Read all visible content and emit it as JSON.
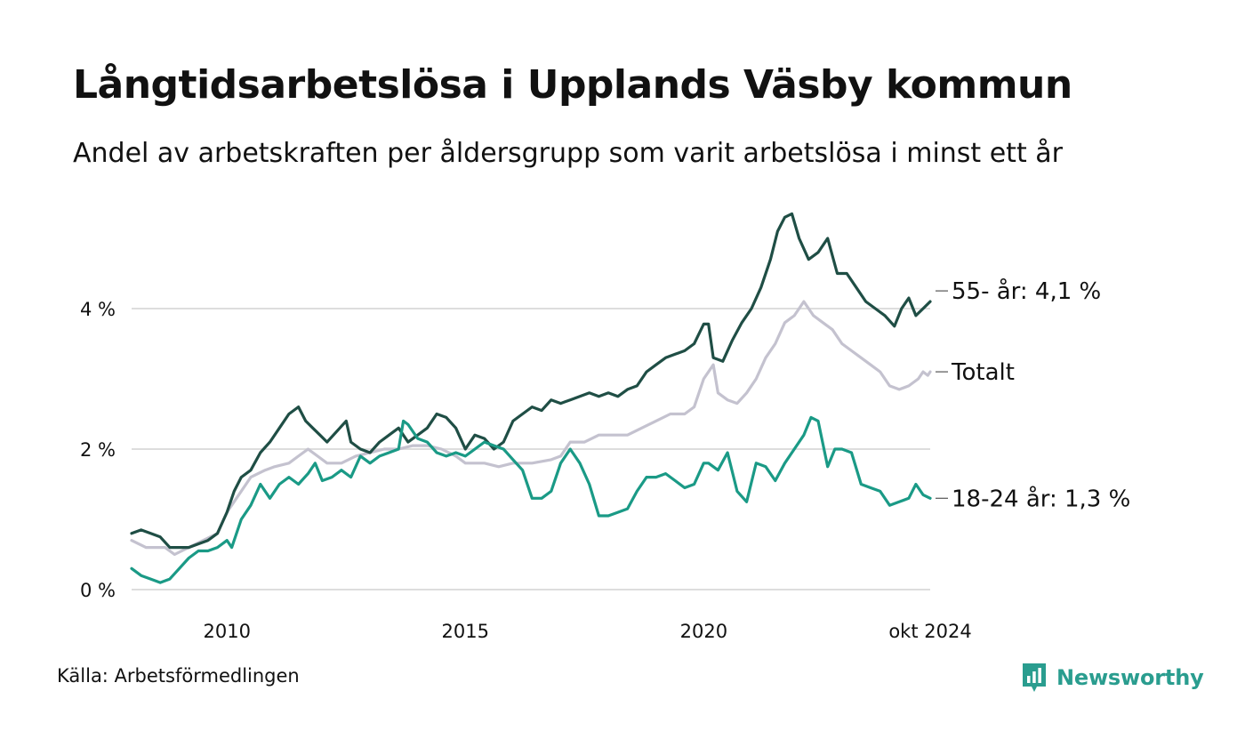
{
  "title": "Långtidsarbetslösa i Upplands Väsby kommun",
  "subtitle": "Andel av arbetskraften per åldersgrupp som varit arbetslösa i minst ett år",
  "source": "Källa: Arbetsförmedlingen",
  "logo_text": "Newsworthy",
  "chart_data": {
    "type": "line",
    "title": "Långtidsarbetslösa i Upplands Väsby kommun",
    "xlabel": "",
    "ylabel": "",
    "x_range": [
      2008.0,
      2024.75
    ],
    "ylim": [
      0,
      5.5
    ],
    "grid": true,
    "y_ticks": [
      {
        "value": 0,
        "label": "0 %"
      },
      {
        "value": 2,
        "label": "2 %"
      },
      {
        "value": 4,
        "label": "4 %"
      }
    ],
    "x_ticks": [
      {
        "value": 2010,
        "label": "2010"
      },
      {
        "value": 2015,
        "label": "2015"
      },
      {
        "value": 2020,
        "label": "2020"
      },
      {
        "value": 2024.75,
        "label": "okt 2024"
      }
    ],
    "colors": {
      "55plus": "#1f4e45",
      "total": "#c4c2cf",
      "18_24": "#1a9a86",
      "grid": "#dddddd"
    },
    "series": [
      {
        "name": "Totalt",
        "key": "total",
        "end_label": "Totalt",
        "points": [
          [
            2008.0,
            0.7
          ],
          [
            2008.3,
            0.6
          ],
          [
            2008.7,
            0.6
          ],
          [
            2008.9,
            0.5
          ],
          [
            2009.2,
            0.6
          ],
          [
            2009.5,
            0.7
          ],
          [
            2009.8,
            0.8
          ],
          [
            2010.0,
            1.1
          ],
          [
            2010.2,
            1.3
          ],
          [
            2010.5,
            1.6
          ],
          [
            2010.8,
            1.7
          ],
          [
            2011.0,
            1.75
          ],
          [
            2011.3,
            1.8
          ],
          [
            2011.5,
            1.9
          ],
          [
            2011.7,
            2.0
          ],
          [
            2011.9,
            1.9
          ],
          [
            2012.1,
            1.8
          ],
          [
            2012.4,
            1.8
          ],
          [
            2012.7,
            1.9
          ],
          [
            2013.0,
            1.95
          ],
          [
            2013.3,
            2.0
          ],
          [
            2013.6,
            2.0
          ],
          [
            2013.9,
            2.05
          ],
          [
            2014.2,
            2.05
          ],
          [
            2014.5,
            2.0
          ],
          [
            2014.8,
            1.9
          ],
          [
            2015.0,
            1.8
          ],
          [
            2015.4,
            1.8
          ],
          [
            2015.7,
            1.75
          ],
          [
            2016.0,
            1.8
          ],
          [
            2016.4,
            1.8
          ],
          [
            2016.8,
            1.85
          ],
          [
            2017.0,
            1.9
          ],
          [
            2017.2,
            2.1
          ],
          [
            2017.5,
            2.1
          ],
          [
            2017.8,
            2.2
          ],
          [
            2018.1,
            2.2
          ],
          [
            2018.4,
            2.2
          ],
          [
            2018.7,
            2.3
          ],
          [
            2019.0,
            2.4
          ],
          [
            2019.3,
            2.5
          ],
          [
            2019.6,
            2.5
          ],
          [
            2019.8,
            2.6
          ],
          [
            2020.0,
            3.0
          ],
          [
            2020.2,
            3.2
          ],
          [
            2020.3,
            2.8
          ],
          [
            2020.5,
            2.7
          ],
          [
            2020.7,
            2.65
          ],
          [
            2020.9,
            2.8
          ],
          [
            2021.1,
            3.0
          ],
          [
            2021.3,
            3.3
          ],
          [
            2021.5,
            3.5
          ],
          [
            2021.7,
            3.8
          ],
          [
            2021.9,
            3.9
          ],
          [
            2022.1,
            4.1
          ],
          [
            2022.3,
            3.9
          ],
          [
            2022.5,
            3.8
          ],
          [
            2022.7,
            3.7
          ],
          [
            2022.9,
            3.5
          ],
          [
            2023.1,
            3.4
          ],
          [
            2023.3,
            3.3
          ],
          [
            2023.5,
            3.2
          ],
          [
            2023.7,
            3.1
          ],
          [
            2023.9,
            2.9
          ],
          [
            2024.1,
            2.85
          ],
          [
            2024.3,
            2.9
          ],
          [
            2024.5,
            3.0
          ],
          [
            2024.6,
            3.1
          ],
          [
            2024.7,
            3.05
          ],
          [
            2024.75,
            3.1
          ]
        ]
      },
      {
        "name": "55- år",
        "key": "55plus",
        "end_label": "55- år: 4,1 %",
        "points": [
          [
            2008.0,
            0.8
          ],
          [
            2008.2,
            0.85
          ],
          [
            2008.4,
            0.8
          ],
          [
            2008.6,
            0.75
          ],
          [
            2008.8,
            0.6
          ],
          [
            2009.0,
            0.6
          ],
          [
            2009.2,
            0.6
          ],
          [
            2009.4,
            0.65
          ],
          [
            2009.6,
            0.7
          ],
          [
            2009.8,
            0.8
          ],
          [
            2010.0,
            1.1
          ],
          [
            2010.15,
            1.4
          ],
          [
            2010.3,
            1.6
          ],
          [
            2010.5,
            1.7
          ],
          [
            2010.7,
            1.95
          ],
          [
            2010.9,
            2.1
          ],
          [
            2011.1,
            2.3
          ],
          [
            2011.3,
            2.5
          ],
          [
            2011.5,
            2.6
          ],
          [
            2011.65,
            2.4
          ],
          [
            2011.8,
            2.3
          ],
          [
            2011.95,
            2.2
          ],
          [
            2012.1,
            2.1
          ],
          [
            2012.3,
            2.25
          ],
          [
            2012.5,
            2.4
          ],
          [
            2012.6,
            2.1
          ],
          [
            2012.8,
            2.0
          ],
          [
            2013.0,
            1.95
          ],
          [
            2013.2,
            2.1
          ],
          [
            2013.4,
            2.2
          ],
          [
            2013.6,
            2.3
          ],
          [
            2013.8,
            2.1
          ],
          [
            2014.0,
            2.2
          ],
          [
            2014.2,
            2.3
          ],
          [
            2014.4,
            2.5
          ],
          [
            2014.6,
            2.45
          ],
          [
            2014.8,
            2.3
          ],
          [
            2015.0,
            2.0
          ],
          [
            2015.2,
            2.2
          ],
          [
            2015.4,
            2.15
          ],
          [
            2015.6,
            2.0
          ],
          [
            2015.8,
            2.1
          ],
          [
            2016.0,
            2.4
          ],
          [
            2016.2,
            2.5
          ],
          [
            2016.4,
            2.6
          ],
          [
            2016.6,
            2.55
          ],
          [
            2016.8,
            2.7
          ],
          [
            2017.0,
            2.65
          ],
          [
            2017.2,
            2.7
          ],
          [
            2017.4,
            2.75
          ],
          [
            2017.6,
            2.8
          ],
          [
            2017.8,
            2.75
          ],
          [
            2018.0,
            2.8
          ],
          [
            2018.2,
            2.75
          ],
          [
            2018.4,
            2.85
          ],
          [
            2018.6,
            2.9
          ],
          [
            2018.8,
            3.1
          ],
          [
            2019.0,
            3.2
          ],
          [
            2019.2,
            3.3
          ],
          [
            2019.4,
            3.35
          ],
          [
            2019.6,
            3.4
          ],
          [
            2019.8,
            3.5
          ],
          [
            2020.0,
            3.78
          ],
          [
            2020.1,
            3.78
          ],
          [
            2020.2,
            3.3
          ],
          [
            2020.4,
            3.25
          ],
          [
            2020.6,
            3.55
          ],
          [
            2020.8,
            3.8
          ],
          [
            2021.0,
            4.0
          ],
          [
            2021.2,
            4.3
          ],
          [
            2021.4,
            4.7
          ],
          [
            2021.55,
            5.1
          ],
          [
            2021.7,
            5.3
          ],
          [
            2021.85,
            5.35
          ],
          [
            2022.0,
            5.0
          ],
          [
            2022.2,
            4.7
          ],
          [
            2022.4,
            4.8
          ],
          [
            2022.6,
            5.0
          ],
          [
            2022.8,
            4.5
          ],
          [
            2023.0,
            4.5
          ],
          [
            2023.2,
            4.3
          ],
          [
            2023.4,
            4.1
          ],
          [
            2023.6,
            4.0
          ],
          [
            2023.8,
            3.9
          ],
          [
            2024.0,
            3.75
          ],
          [
            2024.15,
            4.0
          ],
          [
            2024.3,
            4.15
          ],
          [
            2024.45,
            3.9
          ],
          [
            2024.6,
            4.0
          ],
          [
            2024.75,
            4.1
          ]
        ]
      },
      {
        "name": "18-24 år",
        "key": "18_24",
        "end_label": "18-24 år: 1,3 %",
        "points": [
          [
            2008.0,
            0.3
          ],
          [
            2008.2,
            0.2
          ],
          [
            2008.4,
            0.15
          ],
          [
            2008.6,
            0.1
          ],
          [
            2008.8,
            0.15
          ],
          [
            2009.0,
            0.3
          ],
          [
            2009.2,
            0.45
          ],
          [
            2009.4,
            0.55
          ],
          [
            2009.6,
            0.55
          ],
          [
            2009.8,
            0.6
          ],
          [
            2010.0,
            0.7
          ],
          [
            2010.1,
            0.6
          ],
          [
            2010.3,
            1.0
          ],
          [
            2010.5,
            1.2
          ],
          [
            2010.7,
            1.5
          ],
          [
            2010.9,
            1.3
          ],
          [
            2011.1,
            1.5
          ],
          [
            2011.3,
            1.6
          ],
          [
            2011.5,
            1.5
          ],
          [
            2011.7,
            1.65
          ],
          [
            2011.85,
            1.8
          ],
          [
            2012.0,
            1.55
          ],
          [
            2012.2,
            1.6
          ],
          [
            2012.4,
            1.7
          ],
          [
            2012.6,
            1.6
          ],
          [
            2012.8,
            1.9
          ],
          [
            2013.0,
            1.8
          ],
          [
            2013.2,
            1.9
          ],
          [
            2013.4,
            1.95
          ],
          [
            2013.6,
            2.0
          ],
          [
            2013.7,
            2.4
          ],
          [
            2013.8,
            2.35
          ],
          [
            2014.0,
            2.15
          ],
          [
            2014.2,
            2.1
          ],
          [
            2014.4,
            1.95
          ],
          [
            2014.6,
            1.9
          ],
          [
            2014.8,
            1.95
          ],
          [
            2015.0,
            1.9
          ],
          [
            2015.2,
            2.0
          ],
          [
            2015.4,
            2.1
          ],
          [
            2015.6,
            2.05
          ],
          [
            2015.8,
            2.0
          ],
          [
            2016.0,
            1.85
          ],
          [
            2016.2,
            1.7
          ],
          [
            2016.4,
            1.3
          ],
          [
            2016.6,
            1.3
          ],
          [
            2016.8,
            1.4
          ],
          [
            2017.0,
            1.8
          ],
          [
            2017.2,
            2.0
          ],
          [
            2017.4,
            1.8
          ],
          [
            2017.6,
            1.5
          ],
          [
            2017.8,
            1.05
          ],
          [
            2018.0,
            1.05
          ],
          [
            2018.2,
            1.1
          ],
          [
            2018.4,
            1.15
          ],
          [
            2018.6,
            1.4
          ],
          [
            2018.8,
            1.6
          ],
          [
            2019.0,
            1.6
          ],
          [
            2019.2,
            1.65
          ],
          [
            2019.4,
            1.55
          ],
          [
            2019.6,
            1.45
          ],
          [
            2019.8,
            1.5
          ],
          [
            2020.0,
            1.8
          ],
          [
            2020.1,
            1.8
          ],
          [
            2020.3,
            1.7
          ],
          [
            2020.5,
            1.95
          ],
          [
            2020.7,
            1.4
          ],
          [
            2020.9,
            1.25
          ],
          [
            2021.1,
            1.8
          ],
          [
            2021.3,
            1.75
          ],
          [
            2021.5,
            1.55
          ],
          [
            2021.7,
            1.8
          ],
          [
            2021.9,
            2.0
          ],
          [
            2022.1,
            2.2
          ],
          [
            2022.25,
            2.45
          ],
          [
            2022.4,
            2.4
          ],
          [
            2022.6,
            1.75
          ],
          [
            2022.75,
            2.0
          ],
          [
            2022.9,
            2.0
          ],
          [
            2023.1,
            1.95
          ],
          [
            2023.3,
            1.5
          ],
          [
            2023.5,
            1.45
          ],
          [
            2023.7,
            1.4
          ],
          [
            2023.9,
            1.2
          ],
          [
            2024.1,
            1.25
          ],
          [
            2024.3,
            1.3
          ],
          [
            2024.45,
            1.5
          ],
          [
            2024.6,
            1.35
          ],
          [
            2024.75,
            1.3
          ]
        ]
      }
    ]
  }
}
